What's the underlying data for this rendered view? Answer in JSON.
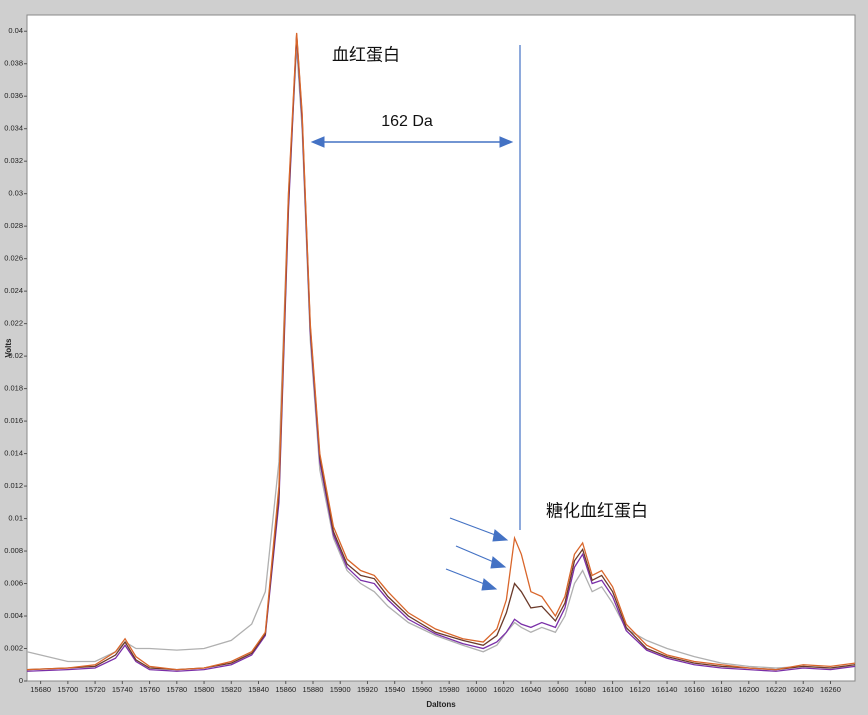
{
  "chart_data": {
    "type": "line",
    "xlabel": "Daltons",
    "ylabel": "Volts",
    "annotations": [
      "血红蛋白",
      "162 Da",
      "糖化血红蛋白"
    ],
    "xlim": [
      15670,
      16278
    ],
    "ylim": [
      0,
      0.041
    ],
    "xticks": [
      15680,
      15700,
      15720,
      15740,
      15760,
      15780,
      15800,
      15820,
      15840,
      15860,
      15880,
      15900,
      15920,
      15940,
      15960,
      15980,
      16000,
      16020,
      16040,
      16060,
      16080,
      16100,
      16120,
      16140,
      16160,
      16180,
      16200,
      16220,
      16240,
      16260
    ],
    "yticks": [
      0,
      0.002,
      0.004,
      0.006,
      0.008,
      0.01,
      0.012,
      0.014,
      0.016,
      0.018,
      0.02,
      0.022,
      0.024,
      0.026,
      0.028,
      0.03,
      0.032,
      0.034,
      0.036,
      0.038,
      0.04
    ],
    "x": [
      15670,
      15700,
      15720,
      15735,
      15742,
      15750,
      15760,
      15780,
      15800,
      15820,
      15835,
      15845,
      15855,
      15862,
      15868,
      15872,
      15878,
      15885,
      15895,
      15905,
      15915,
      15925,
      15935,
      15950,
      15970,
      15990,
      16005,
      16015,
      16022,
      16028,
      16033,
      16040,
      16048,
      16058,
      16065,
      16072,
      16078,
      16085,
      16092,
      16100,
      16110,
      16125,
      16140,
      16160,
      16180,
      16200,
      16220,
      16240,
      16260,
      16278
    ],
    "series": [
      {
        "color": "#b0b0b0",
        "values": [
          0.0018,
          0.0012,
          0.0012,
          0.0018,
          0.0024,
          0.002,
          0.002,
          0.0019,
          0.002,
          0.0025,
          0.0035,
          0.0055,
          0.0135,
          0.03,
          0.039,
          0.034,
          0.021,
          0.013,
          0.0088,
          0.0068,
          0.006,
          0.0055,
          0.0046,
          0.0036,
          0.0028,
          0.0022,
          0.0018,
          0.0022,
          0.003,
          0.0036,
          0.0033,
          0.003,
          0.0033,
          0.003,
          0.004,
          0.006,
          0.0068,
          0.0055,
          0.0058,
          0.0048,
          0.0032,
          0.0025,
          0.002,
          0.0015,
          0.0011,
          0.0009,
          0.0008,
          0.0009,
          0.0008,
          0.0009
        ]
      },
      {
        "color": "#7a2fa8",
        "values": [
          0.0006,
          0.0007,
          0.0008,
          0.0014,
          0.0022,
          0.0012,
          0.0007,
          0.0006,
          0.0007,
          0.001,
          0.0016,
          0.0028,
          0.011,
          0.029,
          0.0397,
          0.0345,
          0.0215,
          0.0135,
          0.009,
          0.007,
          0.0062,
          0.006,
          0.005,
          0.0038,
          0.0029,
          0.0023,
          0.002,
          0.0024,
          0.003,
          0.0038,
          0.0035,
          0.0033,
          0.0036,
          0.0033,
          0.0045,
          0.007,
          0.0078,
          0.006,
          0.0062,
          0.0052,
          0.0031,
          0.0019,
          0.0014,
          0.001,
          0.0008,
          0.0007,
          0.0006,
          0.0008,
          0.0007,
          0.0009
        ]
      },
      {
        "color": "#6b3a2a",
        "values": [
          0.0007,
          0.0008,
          0.0009,
          0.0016,
          0.0024,
          0.0013,
          0.0008,
          0.0007,
          0.0008,
          0.0011,
          0.0017,
          0.0029,
          0.0115,
          0.0295,
          0.0398,
          0.0348,
          0.0218,
          0.0138,
          0.0092,
          0.0072,
          0.0065,
          0.0063,
          0.0052,
          0.004,
          0.003,
          0.0025,
          0.0022,
          0.0028,
          0.0042,
          0.006,
          0.0055,
          0.0045,
          0.0046,
          0.0037,
          0.0048,
          0.0074,
          0.0081,
          0.0062,
          0.0065,
          0.0055,
          0.0033,
          0.002,
          0.0015,
          0.0011,
          0.0009,
          0.0008,
          0.0007,
          0.0009,
          0.0008,
          0.001
        ]
      },
      {
        "color": "#d9662b",
        "values": [
          0.0007,
          0.0008,
          0.001,
          0.0018,
          0.0026,
          0.0015,
          0.0009,
          0.0007,
          0.0008,
          0.0012,
          0.0018,
          0.003,
          0.012,
          0.03,
          0.0399,
          0.035,
          0.022,
          0.014,
          0.0095,
          0.0075,
          0.0068,
          0.0065,
          0.0055,
          0.0042,
          0.0032,
          0.0026,
          0.0024,
          0.0032,
          0.005,
          0.0088,
          0.0078,
          0.0055,
          0.0052,
          0.004,
          0.0052,
          0.0078,
          0.0085,
          0.0065,
          0.0068,
          0.0058,
          0.0035,
          0.0022,
          0.0016,
          0.0012,
          0.001,
          0.0008,
          0.0007,
          0.001,
          0.0009,
          0.0011
        ]
      }
    ]
  }
}
